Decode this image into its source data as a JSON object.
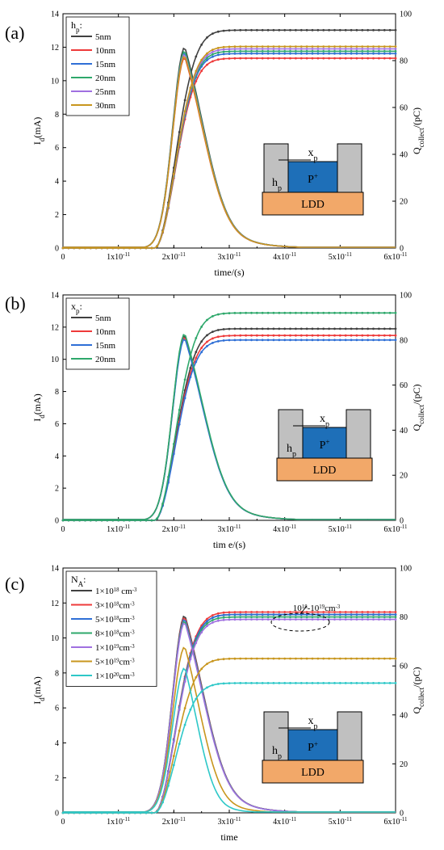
{
  "chart_data": [
    {
      "type": "line",
      "panel_label": "(a)",
      "xlabel": "time/(s)",
      "ylabel": "Id(mA)",
      "ylabel_right": "Qcollect/(pC)",
      "xlim": [
        0,
        6e-11
      ],
      "ylim": [
        0,
        14
      ],
      "ylim_right": [
        0,
        100
      ],
      "x_ticks": [
        0,
        1e-11,
        2e-11,
        3e-11,
        4e-11,
        5e-11,
        6e-11
      ],
      "y_ticks": [
        0,
        2,
        4,
        6,
        8,
        10,
        12,
        14
      ],
      "y_ticks_right": [
        0,
        20,
        40,
        60,
        80,
        100
      ],
      "legend_title": "hp:",
      "legend_position": "top-left",
      "series": [
        {
          "name": "5nm",
          "color": "#404040",
          "peak": 12.0,
          "tail": 1.0,
          "q_final": 93
        },
        {
          "name": "10nm",
          "color": "#ee3a3a",
          "peak": 11.4,
          "tail": 1.0,
          "q_final": 81
        },
        {
          "name": "15nm",
          "color": "#2f6fd6",
          "peak": 11.7,
          "tail": 1.0,
          "q_final": 83
        },
        {
          "name": "20nm",
          "color": "#2ea86b",
          "peak": 11.8,
          "tail": 1.0,
          "q_final": 84
        },
        {
          "name": "25nm",
          "color": "#a070e0",
          "peak": 11.6,
          "tail": 1.0,
          "q_final": 85
        },
        {
          "name": "30nm",
          "color": "#c8961e",
          "peak": 11.5,
          "tail": 1.0,
          "q_final": 86
        }
      ],
      "inset": {
        "x_label": "x",
        "x_sub": "p",
        "h_label": "h",
        "h_sub": "p",
        "p_label": "P",
        "p_sup": "+",
        "ldd_label": "LDD"
      }
    },
    {
      "type": "line",
      "panel_label": "(b)",
      "xlabel": "tim e/(s)",
      "ylabel": "Id(mA)",
      "ylabel_right": "Qcollect/(pC)",
      "xlim": [
        0,
        6e-11
      ],
      "ylim": [
        0,
        14
      ],
      "ylim_right": [
        0,
        100
      ],
      "x_ticks": [
        0,
        1e-11,
        2e-11,
        3e-11,
        4e-11,
        5e-11,
        6e-11
      ],
      "y_ticks": [
        0,
        2,
        4,
        6,
        8,
        10,
        12,
        14
      ],
      "y_ticks_right": [
        0,
        20,
        40,
        60,
        80,
        100
      ],
      "legend_title": "xp:",
      "legend_position": "top-left",
      "series": [
        {
          "name": "5nm",
          "color": "#404040",
          "peak": 11.5,
          "tail": 1.0,
          "q_final": 85
        },
        {
          "name": "10nm",
          "color": "#ee3a3a",
          "peak": 11.4,
          "tail": 1.0,
          "q_final": 82
        },
        {
          "name": "15nm",
          "color": "#2f6fd6",
          "peak": 11.3,
          "tail": 1.0,
          "q_final": 80
        },
        {
          "name": "20nm",
          "color": "#2ea86b",
          "peak": 11.6,
          "tail": 1.0,
          "q_final": 92
        }
      ],
      "inset": {
        "x_label": "x",
        "x_sub": "p",
        "h_label": "h",
        "h_sub": "p",
        "p_label": "P",
        "p_sup": "+",
        "ldd_label": "LDD"
      }
    },
    {
      "type": "line",
      "panel_label": "(c)",
      "xlabel": "time",
      "ylabel": "Id(mA)",
      "ylabel_right": "Qcollect/(pC)",
      "xlim": [
        0,
        6e-11
      ],
      "ylim": [
        0,
        14
      ],
      "ylim_right": [
        0,
        100
      ],
      "x_ticks": [
        0,
        1e-11,
        2e-11,
        3e-11,
        4e-11,
        5e-11,
        6e-11
      ],
      "y_ticks": [
        0,
        2,
        4,
        6,
        8,
        10,
        12,
        14
      ],
      "y_ticks_right": [
        0,
        20,
        40,
        60,
        80,
        100
      ],
      "legend_title": "NA:",
      "legend_position": "top-left",
      "annotation": "10^18-10^19cm^-3",
      "series": [
        {
          "name": "1×10^18 cm^-3",
          "color": "#404040",
          "peak": 11.3,
          "tail": 1.0,
          "q_final": 81
        },
        {
          "name": "3×10^18cm^-3",
          "color": "#ee3a3a",
          "peak": 11.2,
          "tail": 1.0,
          "q_final": 82
        },
        {
          "name": "5×10^18cm^-3",
          "color": "#2f6fd6",
          "peak": 11.1,
          "tail": 1.0,
          "q_final": 81
        },
        {
          "name": "8×10^18cm^-3",
          "color": "#2ea86b",
          "peak": 11.0,
          "tail": 1.0,
          "q_final": 80
        },
        {
          "name": "1×10^19cm^-3",
          "color": "#a070e0",
          "peak": 10.9,
          "tail": 1.0,
          "q_final": 79
        },
        {
          "name": "5×10^19cm^-3",
          "color": "#c8961e",
          "peak": 9.5,
          "tail": 0.8,
          "q_final": 63
        },
        {
          "name": "1×10^20cm^-3",
          "color": "#2ec8c8",
          "peak": 8.3,
          "tail": 0.65,
          "q_final": 53
        }
      ],
      "inset": {
        "x_label": "x",
        "x_sub": "p",
        "h_label": "h",
        "h_sub": "p",
        "p_label": "P",
        "p_sup": "+",
        "ldd_label": "LDD"
      }
    }
  ]
}
